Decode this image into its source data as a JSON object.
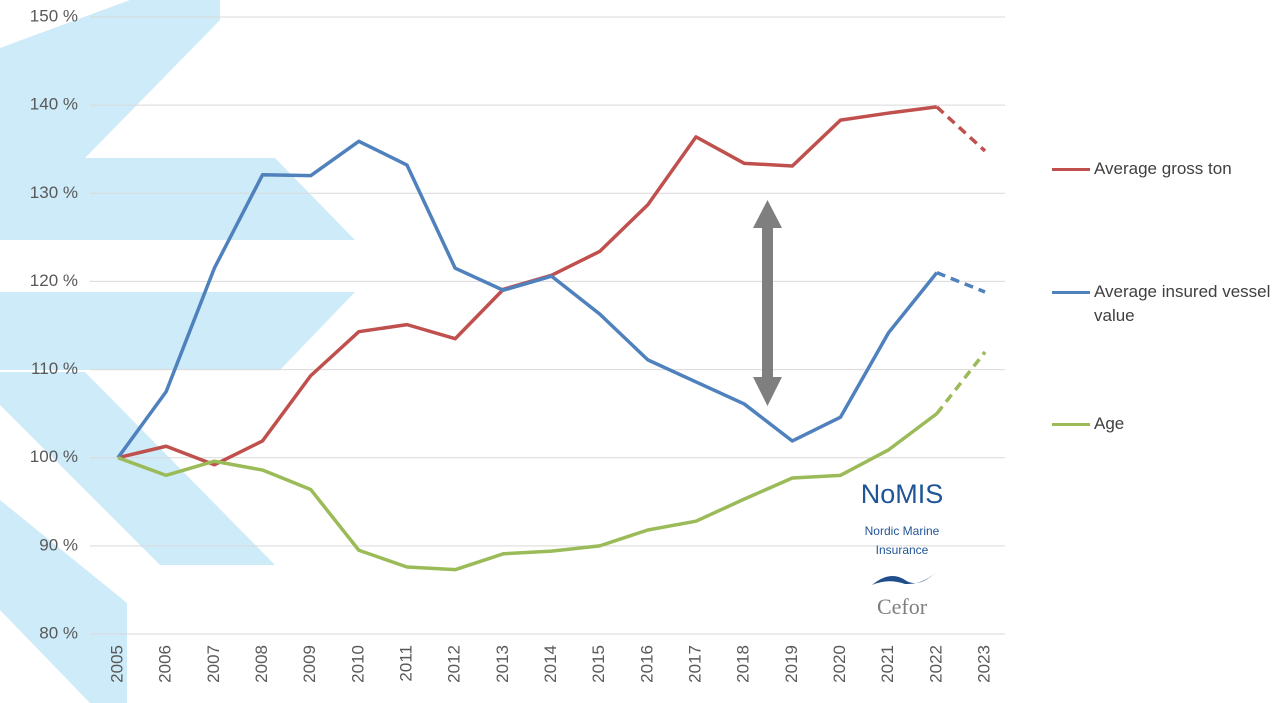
{
  "chart_data": {
    "type": "line",
    "categories": [
      "2005",
      "2006",
      "2007",
      "2008",
      "2009",
      "2010",
      "2011",
      "2012",
      "2013",
      "2014",
      "2015",
      "2016",
      "2017",
      "2018",
      "2019",
      "2020",
      "2021",
      "2022",
      "2023"
    ],
    "series": [
      {
        "name": "Average gross ton",
        "color": "#c0504d",
        "values": [
          100,
          101.3,
          99.2,
          101.9,
          109.3,
          114.3,
          115.1,
          113.5,
          119.1,
          120.7,
          123.4,
          128.7,
          136.4,
          133.4,
          133.1,
          138.3,
          139.1,
          139.8,
          134.8
        ]
      },
      {
        "name": "Average insured vessel value",
        "color": "#4f81bd",
        "values": [
          100,
          107.5,
          121.5,
          132.1,
          132.0,
          135.9,
          133.2,
          121.5,
          119.0,
          120.6,
          116.3,
          111.1,
          108.6,
          106.1,
          101.9,
          104.6,
          114.2,
          121.0,
          118.8
        ]
      },
      {
        "name": "Age",
        "color": "#9bbb59",
        "values": [
          100,
          98.0,
          99.6,
          98.6,
          96.4,
          89.5,
          87.6,
          87.3,
          89.1,
          89.4,
          90.0,
          91.8,
          92.8,
          95.3,
          97.7,
          98.0,
          100.9,
          105.0,
          112.0
        ]
      }
    ],
    "projection_from": "2022",
    "ylim": [
      80,
      150
    ],
    "yticks": [
      {
        "value": 80,
        "label": "80 %"
      },
      {
        "value": 90,
        "label": "90 %"
      },
      {
        "value": 100,
        "label": "100 %"
      },
      {
        "value": 110,
        "label": "110 %"
      },
      {
        "value": 120,
        "label": "120 %"
      },
      {
        "value": 130,
        "label": "130 %"
      },
      {
        "value": 140,
        "label": "140 %"
      },
      {
        "value": 150,
        "label": "150 %"
      }
    ],
    "grid": true,
    "legend": "right"
  },
  "logo": {
    "name": "NoMIS",
    "subtitle": [
      "Nordic Marine",
      "Insurance"
    ],
    "brand": "Cefor"
  }
}
